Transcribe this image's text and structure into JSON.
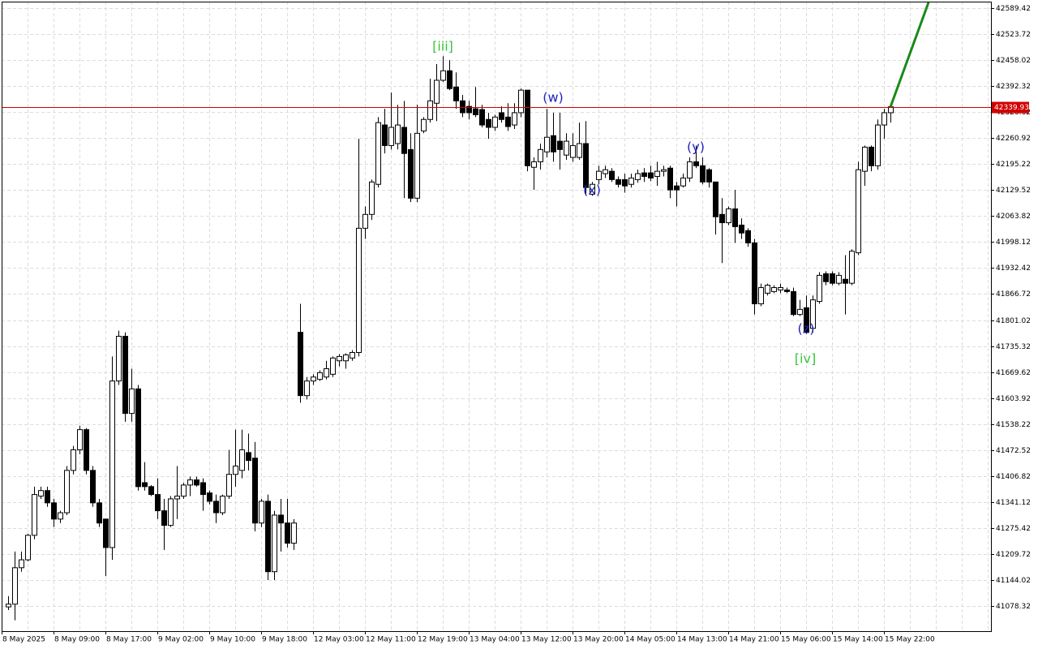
{
  "chart_data": {
    "type": "candlestick",
    "ylim": [
      41014.7,
      42605.8
    ],
    "yticks": [
      42589.42,
      42523.72,
      42458.02,
      42392.32,
      42326.62,
      42260.92,
      42195.22,
      42129.52,
      42063.82,
      41998.12,
      41932.42,
      41866.72,
      41801.02,
      41735.32,
      41669.62,
      41603.92,
      41538.22,
      41472.52,
      41406.82,
      41341.12,
      41275.42,
      41209.72,
      41144.02,
      41078.32
    ],
    "xtick_labels": [
      "8 May 2025",
      "8 May 09:00",
      "8 May 17:00",
      "9 May 02:00",
      "9 May 10:00",
      "9 May 18:00",
      "12 May 03:00",
      "12 May 11:00",
      "12 May 19:00",
      "13 May 04:00",
      "13 May 12:00",
      "13 May 20:00",
      "14 May 05:00",
      "14 May 13:00",
      "14 May 21:00",
      "15 May 06:00",
      "15 May 14:00",
      "15 May 22:00"
    ],
    "grid": true,
    "bull_color": "#ffffff",
    "bear_color": "#000000",
    "line_color": "#000000",
    "current_price": 42339.93,
    "current_price_color": "#d00000",
    "annotations": [
      {
        "text": "[iii]",
        "color": "#3cc43c"
      },
      {
        "text": "(w)",
        "color": "#2222bb"
      },
      {
        "text": "(x)",
        "color": "#2222bb"
      },
      {
        "text": "(y)",
        "color": "#2222bb"
      },
      {
        "text": "(z)",
        "color": "#2222bb"
      },
      {
        "text": "[iv]",
        "color": "#3cc43c"
      }
    ],
    "ohlc": [
      [
        41076,
        41103,
        41068,
        41083
      ],
      [
        41083,
        41216,
        41042,
        41175
      ],
      [
        41175,
        41216,
        41165,
        41195
      ],
      [
        41195,
        41261,
        41191,
        41257
      ],
      [
        41257,
        41380,
        41247,
        41360
      ],
      [
        41356,
        41380,
        41349,
        41370
      ],
      [
        41370,
        41380,
        41329,
        41339
      ],
      [
        41339,
        41349,
        41278,
        41298
      ],
      [
        41298,
        41319,
        41288,
        41314
      ],
      [
        41314,
        41432,
        41308,
        41421
      ],
      [
        41421,
        41483,
        41411,
        41473
      ],
      [
        41473,
        41534,
        41462,
        41524
      ],
      [
        41524,
        41528,
        41411,
        41421
      ],
      [
        41421,
        41432,
        41329,
        41339
      ],
      [
        41339,
        41349,
        41278,
        41288
      ],
      [
        41298,
        41298,
        41154,
        41226
      ],
      [
        41226,
        41709,
        41195,
        41647
      ],
      [
        41647,
        41774,
        41637,
        41760
      ],
      [
        41760,
        41770,
        41544,
        41565
      ],
      [
        41565,
        41678,
        41544,
        41627
      ],
      [
        41627,
        41637,
        41370,
        41380
      ],
      [
        41390,
        41442,
        41370,
        41380
      ],
      [
        41380,
        41384,
        41356,
        41360
      ],
      [
        41360,
        41401,
        41298,
        41319
      ],
      [
        41319,
        41349,
        41220,
        41282
      ],
      [
        41282,
        41356,
        41278,
        41349
      ],
      [
        41349,
        41432,
        41298,
        41356
      ],
      [
        41356,
        41390,
        41349,
        41384
      ],
      [
        41384,
        41405,
        41356,
        41397
      ],
      [
        41397,
        41405,
        41380,
        41384
      ],
      [
        41390,
        41401,
        41319,
        41360
      ],
      [
        41364,
        41370,
        41335,
        41343
      ],
      [
        41343,
        41360,
        41288,
        41314
      ],
      [
        41314,
        41360,
        41308,
        41356
      ],
      [
        41356,
        41473,
        41349,
        41411
      ],
      [
        41411,
        41524,
        41380,
        41432
      ],
      [
        41421,
        41524,
        41401,
        41473
      ],
      [
        41466,
        41514,
        41421,
        41446
      ],
      [
        41452,
        41493,
        41267,
        41288
      ],
      [
        41288,
        41349,
        41278,
        41343
      ],
      [
        41343,
        41360,
        41144,
        41165
      ],
      [
        41165,
        41319,
        41144,
        41308
      ],
      [
        41308,
        41349,
        41216,
        41288
      ],
      [
        41288,
        41349,
        41226,
        41237
      ],
      [
        41237,
        41298,
        41220,
        41288
      ],
      [
        41770,
        41842,
        41592,
        41610
      ],
      [
        41610,
        41657,
        41600,
        41647
      ],
      [
        41647,
        41664,
        41637,
        41657
      ],
      [
        41651,
        41674,
        41647,
        41668
      ],
      [
        41657,
        41698,
        41651,
        41678
      ],
      [
        41664,
        41709,
        41657,
        41705
      ],
      [
        41698,
        41715,
        41684,
        41709
      ],
      [
        41698,
        41717,
        41678,
        41713
      ],
      [
        41705,
        41725,
        41698,
        41719
      ],
      [
        41719,
        42259,
        41709,
        42033
      ],
      [
        42033,
        42088,
        42006,
        42068
      ],
      [
        42068,
        42156,
        42054,
        42150
      ],
      [
        42144,
        42314,
        42136,
        42300
      ],
      [
        42294,
        42335,
        42222,
        42242
      ],
      [
        42242,
        42376,
        42232,
        42288
      ],
      [
        42247,
        42345,
        42232,
        42294
      ],
      [
        42288,
        42355,
        42109,
        42222
      ],
      [
        42232,
        42273,
        42099,
        42109
      ],
      [
        42109,
        42345,
        42099,
        42273
      ],
      [
        42279,
        42314,
        42273,
        42308
      ],
      [
        42308,
        42411,
        42300,
        42355
      ],
      [
        42349,
        42448,
        42304,
        42407
      ],
      [
        42407,
        42468,
        42403,
        42431
      ],
      [
        42431,
        42458,
        42382,
        42386
      ],
      [
        42390,
        42427,
        42335,
        42355
      ],
      [
        42355,
        42370,
        42314,
        42325
      ],
      [
        42341,
        42355,
        42308,
        42325
      ],
      [
        42335,
        42390,
        42314,
        42320
      ],
      [
        42333,
        42345,
        42288,
        42294
      ],
      [
        42308,
        42325,
        42259,
        42288
      ],
      [
        42288,
        42320,
        42279,
        42314
      ],
      [
        42325,
        42341,
        42300,
        42308
      ],
      [
        42314,
        42349,
        42279,
        42290
      ],
      [
        42294,
        42349,
        42284,
        42325
      ],
      [
        42325,
        42386,
        42314,
        42382
      ],
      [
        42382,
        42382,
        42177,
        42191
      ],
      [
        42187,
        42212,
        42130,
        42201
      ],
      [
        42201,
        42247,
        42181,
        42232
      ],
      [
        42226,
        42335,
        42212,
        42263
      ],
      [
        42267,
        42325,
        42201,
        42226
      ],
      [
        42253,
        42325,
        42181,
        42232
      ],
      [
        42218,
        42273,
        42206,
        42253
      ],
      [
        42212,
        42273,
        42201,
        42242
      ],
      [
        42212,
        42300,
        42206,
        42247
      ],
      [
        42247,
        42304,
        42119,
        42136
      ],
      [
        42119,
        42150,
        42115,
        42144
      ],
      [
        42156,
        42191,
        42144,
        42177
      ],
      [
        42171,
        42191,
        42160,
        42181
      ],
      [
        42177,
        42185,
        42150,
        42156
      ],
      [
        42156,
        42164,
        42136,
        42144
      ],
      [
        42156,
        42171,
        42123,
        42140
      ],
      [
        42144,
        42171,
        42136,
        42160
      ],
      [
        42156,
        42181,
        42148,
        42171
      ],
      [
        42173,
        42185,
        42150,
        42164
      ],
      [
        42173,
        42191,
        42152,
        42160
      ],
      [
        42164,
        42201,
        42140,
        42177
      ],
      [
        42177,
        42191,
        42164,
        42181
      ],
      [
        42185,
        42191,
        42109,
        42130
      ],
      [
        42140,
        42150,
        42088,
        42130
      ],
      [
        42140,
        42171,
        42136,
        42160
      ],
      [
        42160,
        42212,
        42150,
        42201
      ],
      [
        42201,
        42242,
        42185,
        42191
      ],
      [
        42191,
        42212,
        42144,
        42150
      ],
      [
        42181,
        42185,
        42136,
        42150
      ],
      [
        42150,
        42150,
        42017,
        42062
      ],
      [
        42068,
        42109,
        41945,
        42047
      ],
      [
        42047,
        42088,
        42041,
        42082
      ],
      [
        42082,
        42130,
        41996,
        42037
      ],
      [
        42041,
        42058,
        42006,
        42021
      ],
      [
        42027,
        42033,
        41986,
        41996
      ],
      [
        41996,
        42006,
        41815,
        41842
      ],
      [
        41842,
        41893,
        41836,
        41883
      ],
      [
        41869,
        41893,
        41863,
        41889
      ],
      [
        41873,
        41889,
        41869,
        41883
      ],
      [
        41877,
        41893,
        41869,
        41883
      ],
      [
        41877,
        41883,
        41869,
        41873
      ],
      [
        41873,
        41883,
        41811,
        41815
      ],
      [
        41815,
        41852,
        41811,
        41828
      ],
      [
        41832,
        41863,
        41766,
        41770
      ],
      [
        41780,
        41863,
        41770,
        41852
      ],
      [
        41848,
        41922,
        41842,
        41914
      ],
      [
        41918,
        41924,
        41889,
        41898
      ],
      [
        41918,
        41924,
        41889,
        41894
      ],
      [
        41894,
        41922,
        41889,
        41914
      ],
      [
        41904,
        41965,
        41815,
        41894
      ],
      [
        41894,
        41980,
        41889,
        41975
      ],
      [
        41971,
        42201,
        41965,
        42181
      ],
      [
        42177,
        42242,
        42140,
        42238
      ],
      [
        42238,
        42242,
        42177,
        42191
      ],
      [
        42191,
        42308,
        42181,
        42294
      ],
      [
        42294,
        42335,
        42259,
        42325
      ],
      [
        42325,
        42349,
        42300,
        42340
      ]
    ]
  }
}
